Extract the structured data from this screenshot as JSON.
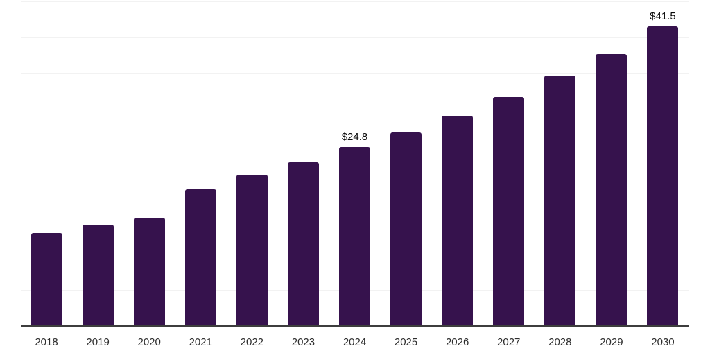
{
  "chart": {
    "background_color": "#ffffff",
    "bar_color": "#36124d",
    "gridline_color": "#f2f2f2",
    "axis_color": "#3d3d3d",
    "tick_label_color": "#2e2e2e",
    "value_label_color": "#0a0a0a"
  },
  "chart_data": {
    "type": "bar",
    "title": "",
    "xlabel": "",
    "ylabel": "",
    "categories": [
      "2018",
      "2019",
      "2020",
      "2021",
      "2022",
      "2023",
      "2024",
      "2025",
      "2026",
      "2027",
      "2028",
      "2029",
      "2030"
    ],
    "values": [
      12.9,
      14.0,
      15.0,
      18.9,
      21.0,
      22.7,
      24.8,
      26.8,
      29.1,
      31.7,
      34.7,
      37.7,
      41.5
    ],
    "data_labels": {
      "2024": "$24.8",
      "2030": "$41.5"
    },
    "ylim": [
      0,
      45
    ],
    "gridline_step": 5,
    "grid": true,
    "legend": false,
    "y_tick_labels_shown": false
  }
}
